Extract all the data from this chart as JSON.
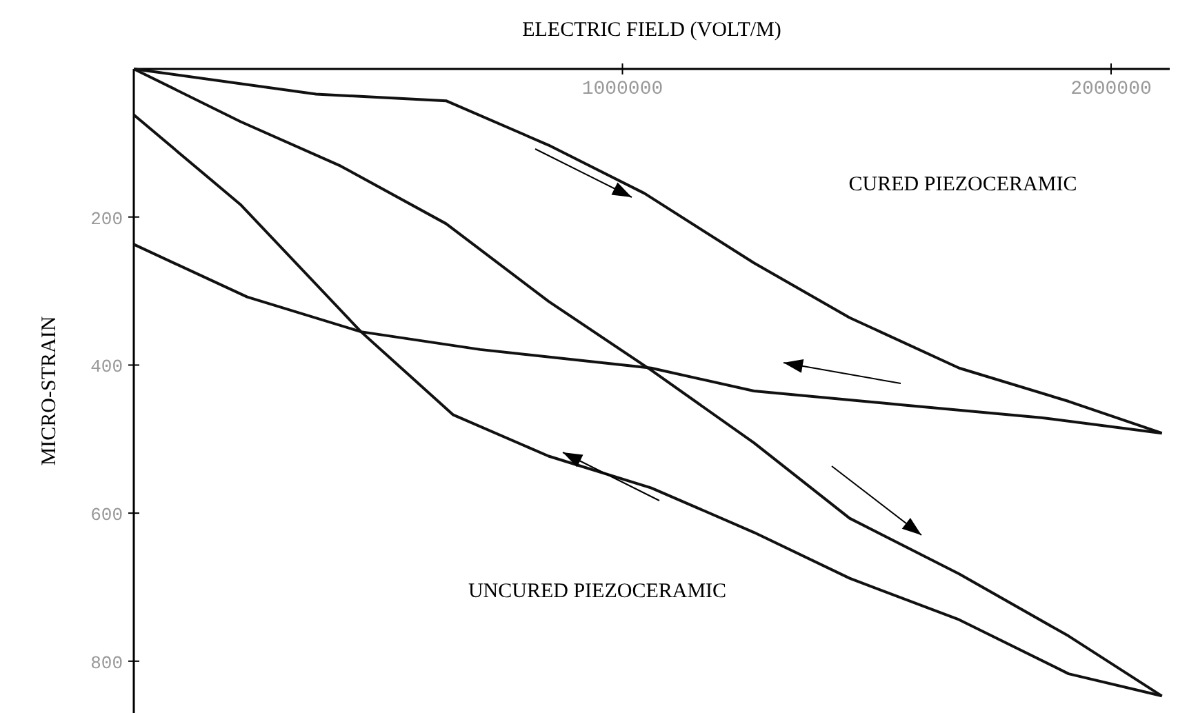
{
  "chart_data": {
    "type": "line",
    "xlabel": "ELECTRIC FIELD (VOLT/M)",
    "ylabel": "MICRO-STRAIN",
    "xlim": [
      0,
      2120000
    ],
    "xticks": [
      1000000,
      2000000
    ],
    "ylim": [
      870,
      0
    ],
    "yticks": [
      200,
      400,
      600,
      800
    ],
    "grid": false,
    "marker": "none",
    "line_style": "solid",
    "series": [
      {
        "color": "#111111",
        "x": [
          0,
          373000,
          639000,
          849000,
          1045000,
          1269000,
          1465000,
          1689000,
          1913000,
          2104000
        ],
        "values": [
          0,
          34,
          43,
          103,
          168,
          262,
          336,
          404,
          449,
          492
        ]
      },
      {
        "color": "#111111",
        "x": [
          2104000,
          1857000,
          1577000,
          1269000,
          1059000,
          709000,
          465000,
          232000,
          0
        ],
        "values": [
          492,
          471,
          454,
          435,
          404,
          379,
          355,
          308,
          237
        ]
      },
      {
        "color": "#111111",
        "x": [
          0,
          218000,
          423000,
          639000,
          849000,
          1059000,
          1269000,
          1465000,
          1689000,
          1913000,
          2104000
        ],
        "values": [
          0,
          71,
          131,
          209,
          314,
          407,
          505,
          607,
          682,
          766,
          847
        ]
      },
      {
        "color": "#111111",
        "x": [
          2104000,
          1913000,
          1689000,
          1465000,
          1269000,
          1059000,
          849000,
          653000,
          465000,
          218000,
          0
        ],
        "values": [
          847,
          817,
          744,
          688,
          626,
          566,
          523,
          467,
          355,
          183,
          62
        ]
      }
    ],
    "annotations": [
      "CURED PIEZOCERAMIC",
      "UNCURED PIEZOCERAMIC"
    ]
  }
}
